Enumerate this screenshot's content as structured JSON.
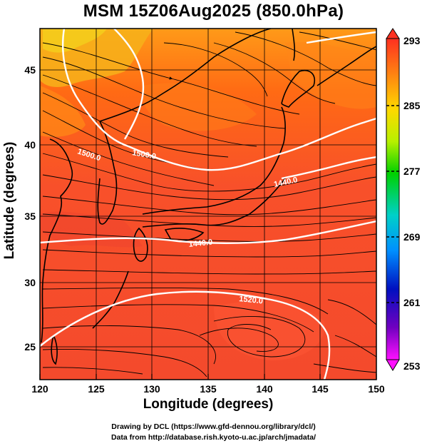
{
  "title": "MSM 15Z06Aug2025 (850.0hPa)",
  "x_axis": {
    "label": "Longitude (degrees)",
    "ticks": [
      "120",
      "125",
      "130",
      "135",
      "140",
      "145",
      "150"
    ]
  },
  "y_axis": {
    "label": "Latitude  (degrees)",
    "ticks": [
      "25",
      "30",
      "35",
      "40",
      "45"
    ]
  },
  "colorbar": {
    "ticks": [
      "293",
      "285",
      "277",
      "269",
      "261",
      "253"
    ],
    "colors": [
      "#ff1a1a",
      "#ff7a00",
      "#ffd000",
      "#a8ff00",
      "#00d000",
      "#00c8c8",
      "#0090ff",
      "#0000c8",
      "#8000c0",
      "#ff00ff"
    ]
  },
  "contour_labels": [
    "1500.0",
    "1500.0",
    "1440.0",
    "1440.0",
    "1520.0"
  ],
  "credits": {
    "line1": "Drawing by DCL (https://www.gfd-dennou.org/library/dcl/)",
    "line2": "Data from http://database.rish.kyoto-u.ac.jp/arch/jmadata/"
  },
  "chart_data": {
    "type": "map",
    "region": {
      "lon": [
        120,
        150
      ],
      "lat": [
        22.5,
        47.5
      ]
    },
    "level_hPa": 850.0,
    "valid_time": "15Z06Aug2025",
    "shaded_variable_range": [
      253,
      293
    ],
    "contours": [
      {
        "label": "1500.0",
        "value": 1500.0
      },
      {
        "label": "1440.0",
        "value": 1440.0
      },
      {
        "label": "1520.0",
        "value": 1520.0
      }
    ],
    "grid": true
  }
}
